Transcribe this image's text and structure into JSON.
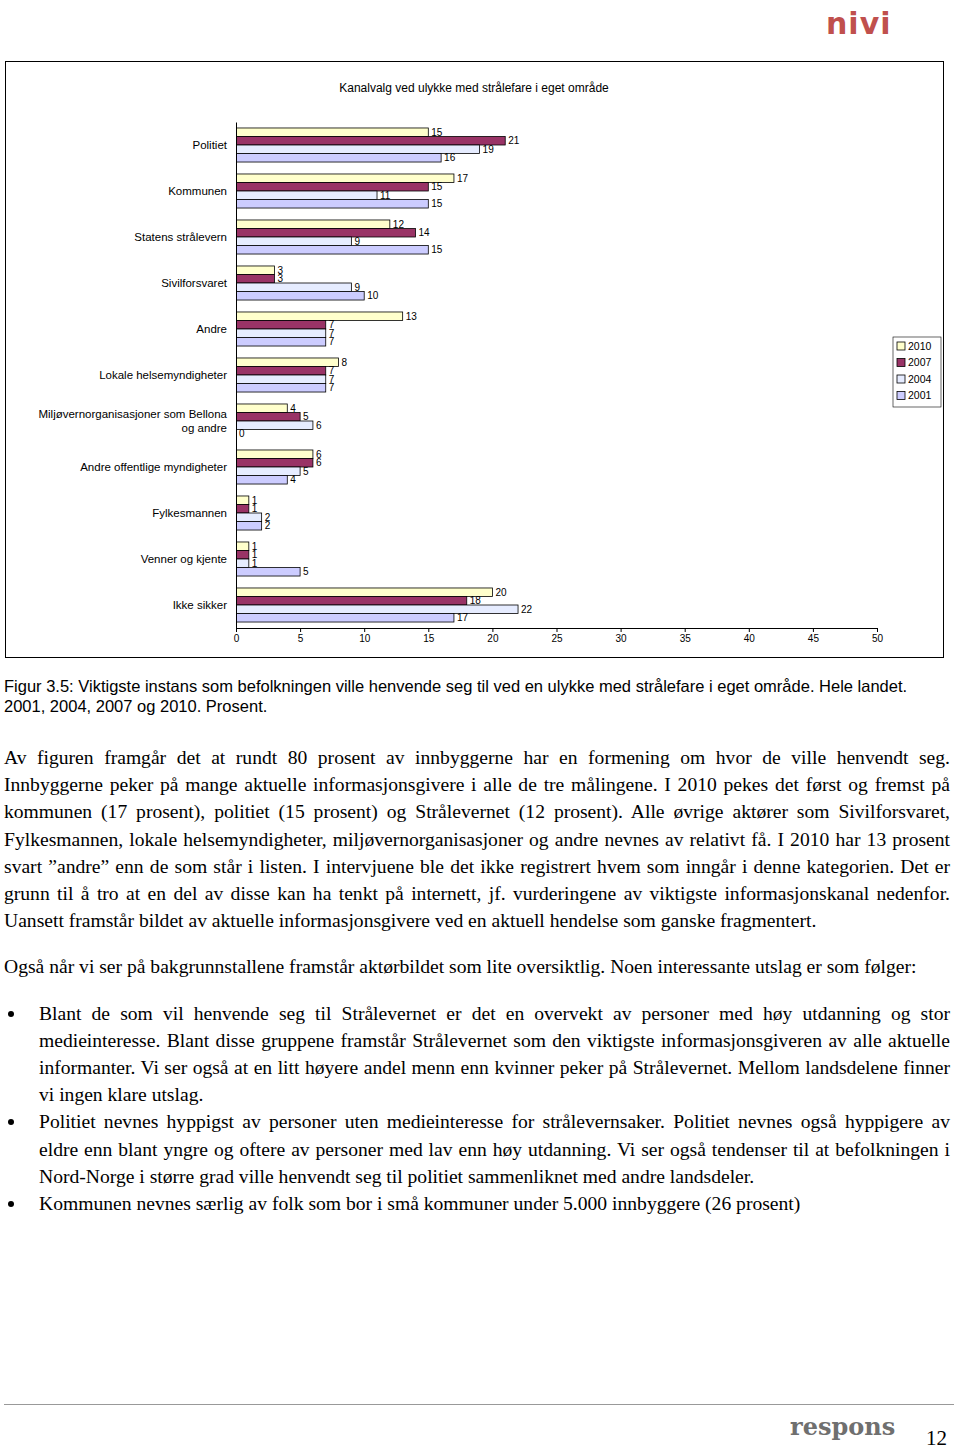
{
  "chart_data": {
    "type": "bar",
    "orientation": "horizontal",
    "title": "Kanalvalg ved ulykke med strålefare i eget område",
    "categories": [
      "Politiet",
      "Kommunen",
      "Statens strålevern",
      "Sivilforsvaret",
      "Andre",
      "Lokale helsemyndigheter",
      "Miljøvernorganisasjoner som Bellona og andre",
      "Andre offentlige myndigheter",
      "Fylkesmannen",
      "Venner og kjente",
      "Ikke sikker"
    ],
    "series": [
      {
        "name": "2010",
        "color": "#ffffcc",
        "values": [
          15,
          17,
          12,
          3,
          13,
          8,
          4,
          6,
          1,
          1,
          20
        ]
      },
      {
        "name": "2007",
        "color": "#993366",
        "values": [
          21,
          15,
          14,
          3,
          7,
          7,
          5,
          6,
          1,
          1,
          18
        ]
      },
      {
        "name": "2004",
        "color": "#e6ecff",
        "values": [
          19,
          11,
          9,
          9,
          7,
          7,
          6,
          5,
          2,
          1,
          22
        ]
      },
      {
        "name": "2001",
        "color": "#ccccff",
        "values": [
          16,
          15,
          15,
          10,
          7,
          7,
          0,
          4,
          2,
          5,
          17
        ]
      }
    ],
    "xlim": [
      0,
      50
    ],
    "xticks": [
      0,
      5,
      10,
      15,
      20,
      25,
      30,
      35,
      40,
      45,
      50
    ],
    "data_labels": true,
    "grid": false,
    "legend": "right"
  },
  "document": {
    "header_logo": "nivi",
    "caption": "Figur 3.5: Viktigste instans som befolkningen ville henvende seg til ved en ulykke med strålefare i eget område. Hele landet. 2001, 2004, 2007 og 2010. Prosent.",
    "paragraphs": [
      "Av figuren framgår det at rundt 80 prosent av innbyggerne har en formening om hvor de ville henvendt seg. Innbyggerne peker på mange aktuelle informasjonsgivere i alle de tre målingene. I 2010 pekes det først og fremst på kommunen (17 prosent), politiet (15 prosent) og Strålevernet (12 prosent). Alle øvrige aktører som Sivilforsvaret, Fylkesmannen, lokale helsemyndigheter, miljøvernorganisasjoner og andre nevnes av relativt få. I 2010 har 13 prosent svart ”andre” enn de som står i listen. I intervjuene ble det ikke registrert hvem som inngår i denne kategorien. Det er grunn til å tro at en del av disse kan ha tenkt på internett, jf. vurderingene av viktigste informasjonskanal nedenfor. Uansett framstår bildet av aktuelle informasjonsgivere ved en aktuell hendelse som ganske fragmentert.",
      "Også når vi ser på bakgrunnstallene framstår aktørbildet som lite oversiktlig. Noen interessante utslag er som følger:"
    ],
    "bullets": [
      "Blant de som vil henvende seg til Strålevernet er det en overvekt av personer med høy utdanning og stor medieinteresse. Blant disse gruppene framstår Strålevernet som den viktigste informasjonsgiveren av alle aktuelle informanter. Vi ser også at en litt høyere andel menn enn kvinner peker på Strålevernet. Mellom landsdelene finner vi ingen klare utslag.",
      "Politiet nevnes hyppigst av personer uten medieinteresse for strålevernsaker. Politiet nevnes også hyppigere av eldre enn blant yngre og oftere av personer med lav enn høy utdanning. Vi ser også tendenser til at befolkningen i Nord-Norge i større grad ville henvendt seg til politiet sammenliknet med andre landsdeler.",
      "Kommunen nevnes særlig av folk som bor i små kommuner under 5.000 innbyggere (26 prosent)"
    ],
    "footer_logo": "respons",
    "page_number": "12"
  }
}
